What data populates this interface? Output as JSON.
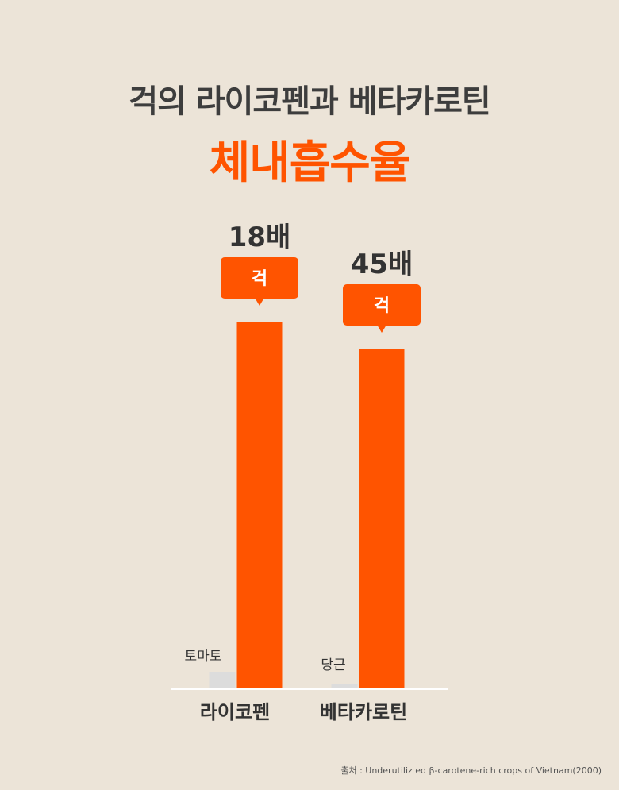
{
  "header": {
    "title_line1": "걱의 라이코펜과 베타카로틴",
    "title_line2": "체내흡수율"
  },
  "colors": {
    "accent": "#ff5400",
    "comparison_bar": "#dcdcdc",
    "background": "#ece4d8",
    "title": "#3d3d3d"
  },
  "chart_data": {
    "type": "bar",
    "title": "걱의 라이코펜과 베타카로틴 체내흡수율",
    "categories": [
      "라이코펜",
      "베타카로틴"
    ],
    "series": [
      {
        "name": "토마토 / 당근",
        "values": [
          1,
          1
        ]
      },
      {
        "name": "걱",
        "values": [
          18,
          45
        ]
      }
    ],
    "comparison_labels": [
      "토마토",
      "당근"
    ],
    "callout_label": "걱",
    "multiplier_labels": [
      "18배",
      "45배"
    ],
    "xlabel": "",
    "ylabel": "",
    "grid": false,
    "legend": "none"
  },
  "source": "출처 : Underutiliz ed β-carotene-rich crops of Vietnam(2000)"
}
